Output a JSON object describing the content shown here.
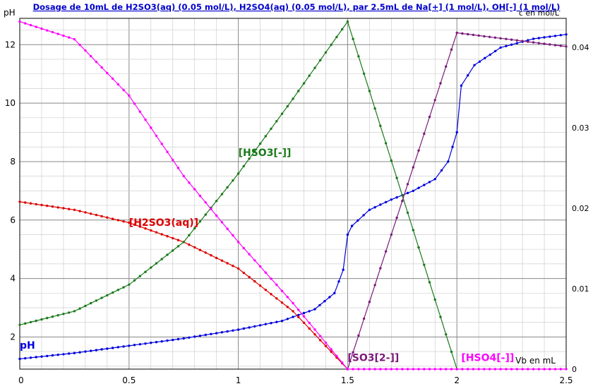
{
  "chart_data": {
    "type": "line",
    "title": "Dosage de 10mL de H2SO3(aq) (0.05 mol/L), H2SO4(aq) (0.05 mol/L),  par 2.5mL  de Na[+] (1 mol/L), OH[-] (1 mol/L)",
    "xlabel": "Vb en mL",
    "ylabel_left": "pH",
    "ylabel_right": "c en mol/L",
    "xlim": [
      0,
      2.5
    ],
    "ylim_left": [
      0.9,
      12.9
    ],
    "ylim_right": [
      0,
      0.0436
    ],
    "x_ticks": [
      "0",
      "0.5",
      "1",
      "1.5",
      "2",
      "2.5"
    ],
    "y_left_ticks": [
      "2",
      "4",
      "6",
      "8",
      "10",
      "12"
    ],
    "y_right_ticks": [
      "0",
      "0.01",
      "0.02",
      "0.03",
      "0.04"
    ],
    "grid": true,
    "colors": {
      "ph": "#0000dd",
      "h2so3": "#dd0000",
      "hso3": "#1a7a1a",
      "so3": "#7a1a7a",
      "hso4": "#ff00ff",
      "hso4_magenta": "#ff00ff"
    },
    "series": [
      {
        "name": "pH",
        "axis": "left",
        "color_key": "ph",
        "points": [
          [
            0,
            1.25
          ],
          [
            0.25,
            1.45
          ],
          [
            0.5,
            1.7
          ],
          [
            0.75,
            1.95
          ],
          [
            1.0,
            2.25
          ],
          [
            1.2,
            2.55
          ],
          [
            1.35,
            2.95
          ],
          [
            1.44,
            3.5
          ],
          [
            1.48,
            4.3
          ],
          [
            1.5,
            5.5
          ],
          [
            1.52,
            5.8
          ],
          [
            1.6,
            6.35
          ],
          [
            1.7,
            6.7
          ],
          [
            1.8,
            7.0
          ],
          [
            1.9,
            7.4
          ],
          [
            1.96,
            8.0
          ],
          [
            2.0,
            9.0
          ],
          [
            2.02,
            10.6
          ],
          [
            2.08,
            11.3
          ],
          [
            2.2,
            11.9
          ],
          [
            2.35,
            12.2
          ],
          [
            2.5,
            12.35
          ]
        ]
      },
      {
        "name": "[H2SO3(aq)]",
        "axis": "right",
        "color_key": "h2so3",
        "points": [
          [
            0,
            0.0208
          ],
          [
            0.25,
            0.0198
          ],
          [
            0.5,
            0.0182
          ],
          [
            0.75,
            0.0158
          ],
          [
            1.0,
            0.0125
          ],
          [
            1.25,
            0.0072
          ],
          [
            1.5,
            0.0
          ]
        ]
      },
      {
        "name": "[HSO3[-]]",
        "axis": "right",
        "color_key": "hso3",
        "points": [
          [
            0,
            0.0055
          ],
          [
            0.25,
            0.0072
          ],
          [
            0.5,
            0.0105
          ],
          [
            0.75,
            0.0158
          ],
          [
            1.0,
            0.0243
          ],
          [
            1.25,
            0.0336
          ],
          [
            1.5,
            0.0432
          ],
          [
            2.0,
            0.0
          ]
        ]
      },
      {
        "name": "[SO3[2-]]",
        "axis": "right",
        "color_key": "so3",
        "points": [
          [
            1.5,
            0.0
          ],
          [
            2.0,
            0.0418
          ],
          [
            2.5,
            0.0401
          ]
        ]
      },
      {
        "name": "[HSO4[-]]",
        "axis": "right",
        "color_key": "hso4",
        "points": [
          [
            0,
            0.0432
          ],
          [
            0.25,
            0.041
          ],
          [
            0.5,
            0.034
          ],
          [
            0.75,
            0.024
          ],
          [
            1.0,
            0.0158
          ],
          [
            1.25,
            0.0082
          ],
          [
            1.5,
            0.0
          ]
        ]
      },
      {
        "name": "[HSO4[-]] (flat)",
        "axis": "right",
        "color_key": "hso4_magenta",
        "points": [
          [
            1.5,
            0.0
          ],
          [
            2.5,
            0.0
          ]
        ]
      }
    ],
    "annotations": [
      {
        "text": "[HSO3[-]]",
        "color_key": "hso3",
        "at": [
          1.0,
          0.0265
        ],
        "axis": "right"
      },
      {
        "text": "[H2SO3(aq)]",
        "color_key": "h2so3",
        "at": [
          0.5,
          0.0178
        ],
        "axis": "right"
      },
      {
        "text": "[SO3[2-]]",
        "color_key": "so3",
        "at": [
          1.5,
          0.001
        ],
        "axis": "right"
      },
      {
        "text": "[HSO4[-]]",
        "color_key": "hso4",
        "at": [
          2.02,
          0.001
        ],
        "axis": "right"
      },
      {
        "text": "pH",
        "color_key": "ph",
        "at": [
          0.0,
          1.6
        ],
        "axis": "left"
      }
    ]
  }
}
